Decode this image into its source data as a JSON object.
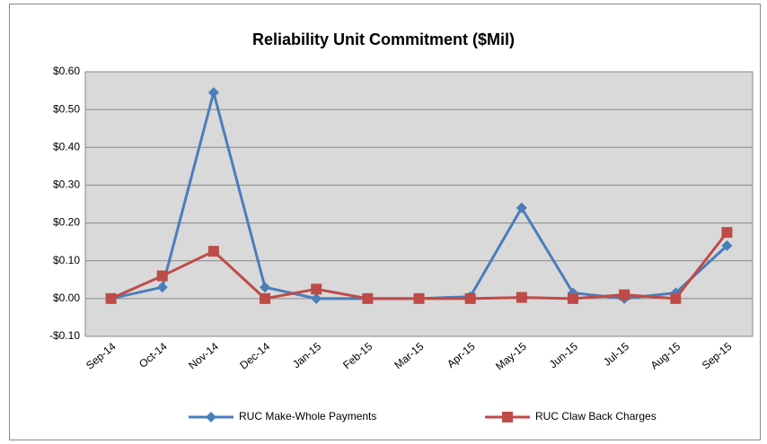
{
  "chart_data": {
    "type": "line",
    "title": "Reliability Unit Commitment ($Mil)",
    "categories": [
      "Sep-14",
      "Oct-14",
      "Nov-14",
      "Dec-14",
      "Jan-15",
      "Feb-15",
      "Mar-15",
      "Apr-15",
      "May-15",
      "Jun-15",
      "Jul-15",
      "Aug-15",
      "Sep-15"
    ],
    "series": [
      {
        "name": "RUC Make-Whole Payments",
        "color": "#4a7ebb",
        "marker": "diamond",
        "values": [
          0.0,
          0.03,
          0.545,
          0.03,
          0.0,
          0.0,
          0.0,
          0.005,
          0.24,
          0.015,
          0.0,
          0.015,
          0.14
        ]
      },
      {
        "name": "RUC Claw Back Charges",
        "color": "#be4b48",
        "marker": "square",
        "values": [
          0.0,
          0.06,
          0.125,
          0.0,
          0.025,
          0.0,
          0.0,
          0.0,
          0.003,
          0.0,
          0.01,
          0.0,
          0.175
        ]
      }
    ],
    "ylim": [
      -0.1,
      0.6
    ],
    "yticks": [
      {
        "value": -0.1,
        "label": "-$0.10"
      },
      {
        "value": 0,
        "label": "$0.00"
      },
      {
        "value": 0.1,
        "label": "$0.10"
      },
      {
        "value": 0.2,
        "label": "$0.20"
      },
      {
        "value": 0.3,
        "label": "$0.30"
      },
      {
        "value": 0.4,
        "label": "$0.40"
      },
      {
        "value": 0.5,
        "label": "$0.50"
      },
      {
        "value": 0.6,
        "label": "$0.60"
      }
    ],
    "grid": true,
    "legend": "bottom"
  }
}
